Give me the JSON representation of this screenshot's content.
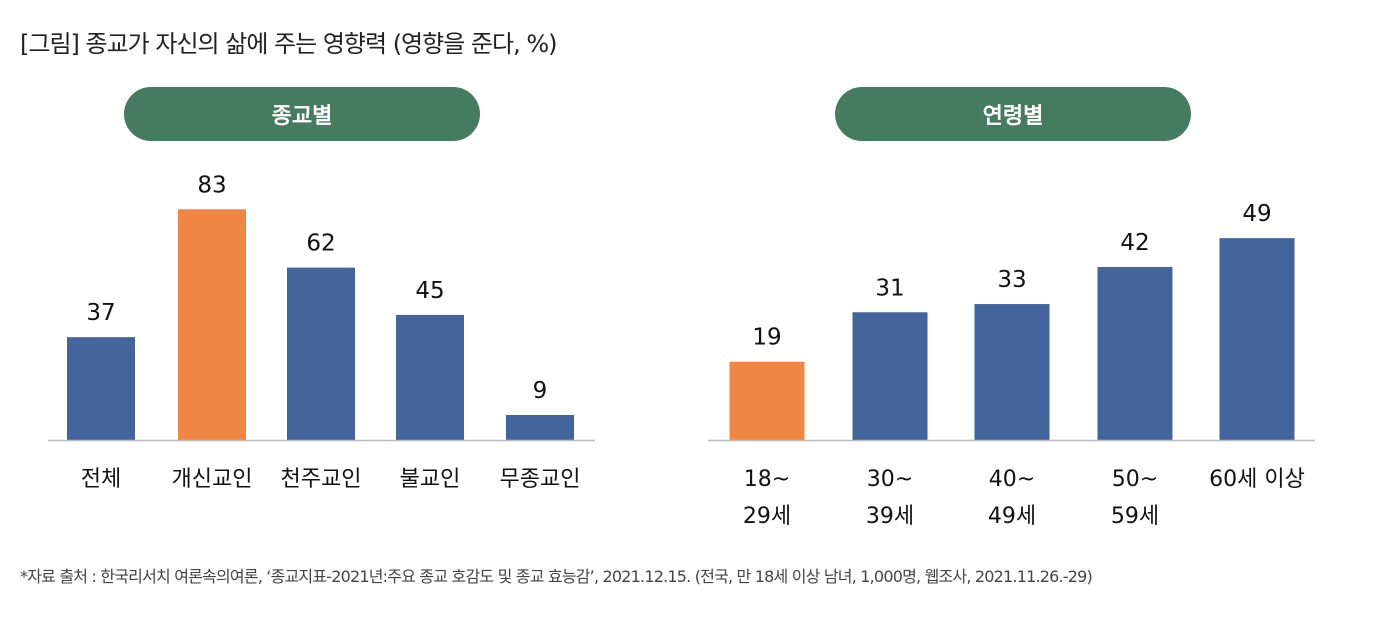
{
  "title": "[그림] 종교가 자신의 삶에 주는 영향력 (영향을 준다, %)",
  "footnote": "*자료 출처 : 한국리서치 여론속의여론, ‘종교지표-2021년:주요 종교 호감도 및 종교 효능감’, 2021.12.15. (전국, 만 18세 이상 남녀, 1,000명, 웹조사, 2021.11.26.-29)",
  "colors": {
    "header": "#457b5e",
    "bar": "#44649c",
    "highlight": "#f08644"
  },
  "chart_data": [
    {
      "type": "bar",
      "title": "종교별",
      "categories": [
        "전체",
        "개신교인",
        "천주교인",
        "불교인",
        "무종교인"
      ],
      "values": [
        37,
        83,
        62,
        45,
        9
      ],
      "highlight": [
        false,
        true,
        false,
        false,
        false
      ],
      "ylim": [
        0,
        90
      ]
    },
    {
      "type": "bar",
      "title": "연령별",
      "categories": [
        "18~\n29세",
        "30~\n39세",
        "40~\n49세",
        "50~\n59세",
        "60세 이상"
      ],
      "values": [
        19,
        31,
        33,
        42,
        49
      ],
      "highlight": [
        true,
        false,
        false,
        false,
        false
      ],
      "ylim": [
        0,
        50
      ]
    }
  ]
}
